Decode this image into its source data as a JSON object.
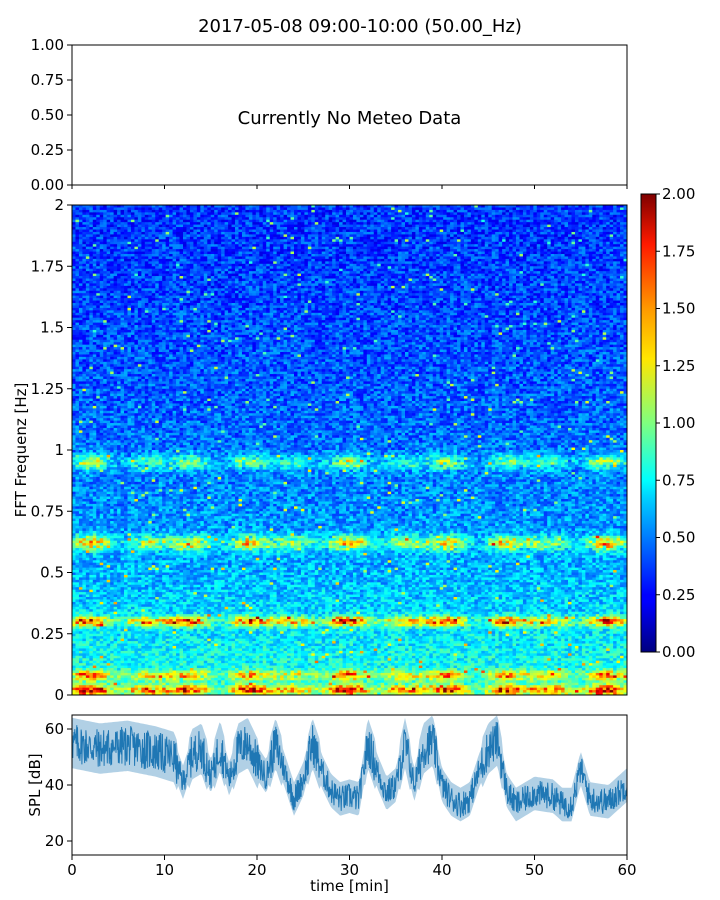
{
  "title": "2017-05-08 09:00-10:00 (50.00_Hz)",
  "chart_data": [
    {
      "type": "line",
      "panel": "meteo",
      "annotation": "Currently No Meteo Data",
      "ylim": [
        0,
        1
      ],
      "yticks": [
        "1.00",
        "0.75",
        "0.50",
        "0.25",
        "0.00"
      ],
      "yticks_values": [
        1,
        0.75,
        0.5,
        0.25,
        0
      ],
      "xlim": [
        0,
        60
      ],
      "xticks_values": [
        0,
        10,
        20,
        30,
        40,
        50,
        60
      ],
      "series": []
    },
    {
      "type": "heatmap",
      "panel": "spectrogram",
      "ylabel": "FFT Frequenz [Hz]",
      "ylim": [
        0,
        2
      ],
      "yticks": [
        "2",
        "1.75",
        "1.5",
        "1.25",
        "1",
        "0.75",
        "0.5",
        "0.25",
        "0"
      ],
      "yticks_values": [
        2,
        1.75,
        1.5,
        1.25,
        1,
        0.75,
        0.5,
        0.25,
        0
      ],
      "xlim": [
        0,
        60
      ],
      "colormap": "jet",
      "colorbar": {
        "range": [
          0,
          2
        ],
        "ticks": [
          "2.00",
          "1.75",
          "1.50",
          "1.25",
          "1.00",
          "0.75",
          "0.50",
          "0.25",
          "0.00"
        ],
        "ticks_values": [
          2,
          1.75,
          1.5,
          1.25,
          1,
          0.75,
          0.5,
          0.25,
          0
        ]
      },
      "features": [
        {
          "freq_hz": 0.02,
          "level": 1.6
        },
        {
          "freq_hz": 0.08,
          "level": 1.1
        },
        {
          "freq_hz": 0.3,
          "level": 1.7
        },
        {
          "freq_hz": 0.62,
          "level": 1.2
        },
        {
          "freq_hz": 0.95,
          "level": 0.9
        }
      ]
    },
    {
      "type": "line",
      "panel": "spl",
      "ylabel": "SPL [dB]",
      "xlabel": "time [min]",
      "ylim": [
        15,
        65
      ],
      "yticks": [
        "60",
        "40",
        "20"
      ],
      "yticks_values": [
        60,
        40,
        20
      ],
      "xlim": [
        0,
        60
      ],
      "xticks": [
        "0",
        "10",
        "20",
        "30",
        "40",
        "50",
        "60"
      ],
      "xticks_values": [
        0,
        10,
        20,
        30,
        40,
        50,
        60
      ],
      "line_color": "#1f77b4",
      "series": {
        "x": [
          0,
          3,
          6,
          9,
          11,
          12,
          13,
          14,
          15,
          16,
          17,
          18,
          19,
          20,
          21,
          22,
          23,
          24,
          25,
          26,
          27,
          28,
          29,
          30,
          31,
          32,
          33,
          34,
          35,
          36,
          37,
          38,
          39,
          40,
          41,
          42,
          43,
          44,
          45,
          46,
          47,
          48,
          50,
          52,
          53,
          54,
          55,
          56,
          58,
          60
        ],
        "y": [
          55,
          53,
          54,
          52,
          50,
          41,
          51,
          53,
          43,
          54,
          42,
          53,
          55,
          48,
          43,
          55,
          45,
          35,
          42,
          55,
          45,
          38,
          35,
          36,
          35,
          55,
          45,
          37,
          40,
          55,
          40,
          53,
          56,
          40,
          35,
          33,
          35,
          45,
          53,
          56,
          38,
          33,
          37,
          36,
          33,
          33,
          46,
          35,
          34,
          40
        ]
      }
    }
  ]
}
